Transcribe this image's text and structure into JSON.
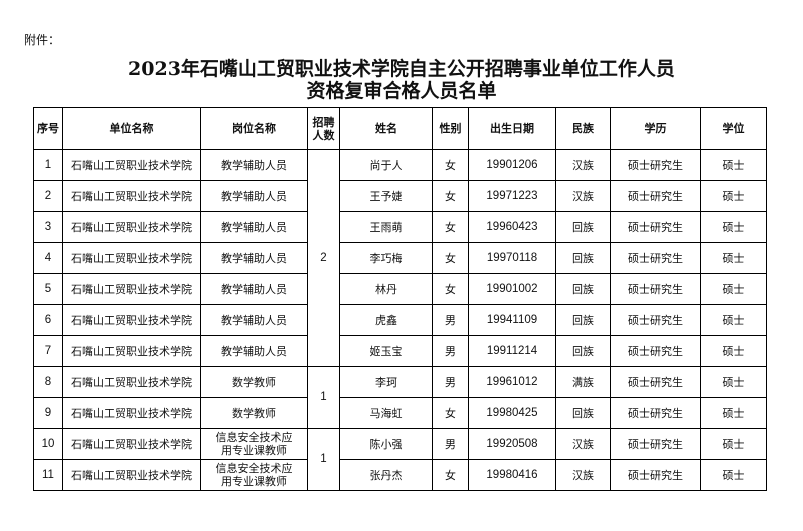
{
  "attachment": "附件：",
  "title_line1": "2023年石嘴山工贸职业技术学院自主公开招聘事业单位工作人员",
  "title_line2": "资格复审合格人员名单",
  "headers": [
    "序号",
    "单位名称",
    "岗位名称",
    "招聘人数",
    "姓名",
    "性别",
    "出生日期",
    "民族",
    "学历",
    "学位"
  ],
  "rows": [
    {
      "no": "1",
      "unit": "石嘴山工贸职业技术学院",
      "post": "教学辅助人员",
      "name": "尚于人",
      "sex": "女",
      "birth": "19901206",
      "ethnic": "汉族",
      "edu": "硕士研究生",
      "degree": "硕士"
    },
    {
      "no": "2",
      "unit": "石嘴山工贸职业技术学院",
      "post": "教学辅助人员",
      "name": "王予婕",
      "sex": "女",
      "birth": "19971223",
      "ethnic": "汉族",
      "edu": "硕士研究生",
      "degree": "硕士"
    },
    {
      "no": "3",
      "unit": "石嘴山工贸职业技术学院",
      "post": "教学辅助人员",
      "name": "王雨萌",
      "sex": "女",
      "birth": "19960423",
      "ethnic": "回族",
      "edu": "硕士研究生",
      "degree": "硕士"
    },
    {
      "no": "4",
      "unit": "石嘴山工贸职业技术学院",
      "post": "教学辅助人员",
      "name": "李巧梅",
      "sex": "女",
      "birth": "19970118",
      "ethnic": "回族",
      "edu": "硕士研究生",
      "degree": "硕士"
    },
    {
      "no": "5",
      "unit": "石嘴山工贸职业技术学院",
      "post": "教学辅助人员",
      "name": "林丹",
      "sex": "女",
      "birth": "19901002",
      "ethnic": "回族",
      "edu": "硕士研究生",
      "degree": "硕士"
    },
    {
      "no": "6",
      "unit": "石嘴山工贸职业技术学院",
      "post": "教学辅助人员",
      "name": "虎鑫",
      "sex": "男",
      "birth": "19941109",
      "ethnic": "回族",
      "edu": "硕士研究生",
      "degree": "硕士"
    },
    {
      "no": "7",
      "unit": "石嘴山工贸职业技术学院",
      "post": "教学辅助人员",
      "name": "姬玉宝",
      "sex": "男",
      "birth": "19911214",
      "ethnic": "回族",
      "edu": "硕士研究生",
      "degree": "硕士"
    },
    {
      "no": "8",
      "unit": "石嘴山工贸职业技术学院",
      "post": "数学教师",
      "name": "李珂",
      "sex": "男",
      "birth": "19961012",
      "ethnic": "满族",
      "edu": "硕士研究生",
      "degree": "硕士"
    },
    {
      "no": "9",
      "unit": "石嘴山工贸职业技术学院",
      "post": "数学教师",
      "name": "马海虹",
      "sex": "女",
      "birth": "19980425",
      "ethnic": "回族",
      "edu": "硕士研究生",
      "degree": "硕士"
    },
    {
      "no": "10",
      "unit": "石嘴山工贸职业技术学院",
      "post": "信息安全技术应用专业课教师",
      "name": "陈小强",
      "sex": "男",
      "birth": "19920508",
      "ethnic": "汉族",
      "edu": "硕士研究生",
      "degree": "硕士"
    },
    {
      "no": "11",
      "unit": "石嘴山工贸职业技术学院",
      "post": "信息安全技术应用专业课教师",
      "name": "张丹杰",
      "sex": "女",
      "birth": "19980416",
      "ethnic": "汉族",
      "edu": "硕士研究生",
      "degree": "硕士"
    }
  ],
  "quotas": [
    {
      "value": "2",
      "rows": 7
    },
    {
      "value": "1",
      "rows": 2
    },
    {
      "value": "1",
      "rows": 2
    }
  ]
}
